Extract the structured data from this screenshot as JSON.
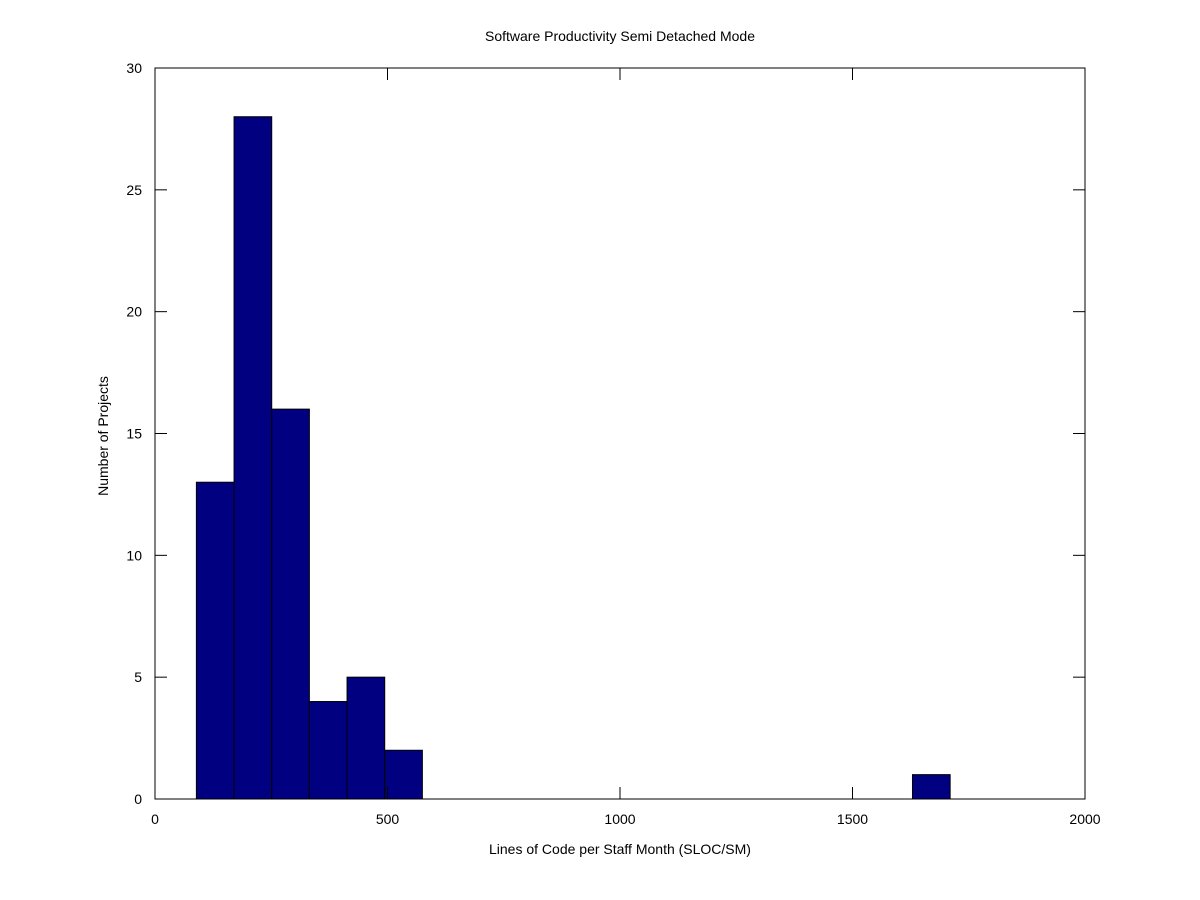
{
  "chart_data": {
    "type": "bar",
    "title": "Software Productivity Semi Detached Mode",
    "xlabel": "Lines of Code per Staff Month (SLOC/SM)",
    "ylabel": "Number of Projects",
    "xlim": [
      0,
      2000
    ],
    "ylim": [
      0,
      30
    ],
    "xticks": [
      0,
      500,
      1000,
      1500,
      2000
    ],
    "yticks": [
      0,
      5,
      10,
      15,
      20,
      25,
      30
    ],
    "grid": false,
    "bar_color": "#000080",
    "bins": [
      {
        "x0": 89,
        "x1": 170,
        "value": 13
      },
      {
        "x0": 170,
        "x1": 251,
        "value": 28
      },
      {
        "x0": 251,
        "x1": 332,
        "value": 16
      },
      {
        "x0": 332,
        "x1": 413,
        "value": 4
      },
      {
        "x0": 413,
        "x1": 494,
        "value": 5
      },
      {
        "x0": 494,
        "x1": 575,
        "value": 2
      },
      {
        "x0": 1629,
        "x1": 1710,
        "value": 1
      }
    ]
  }
}
